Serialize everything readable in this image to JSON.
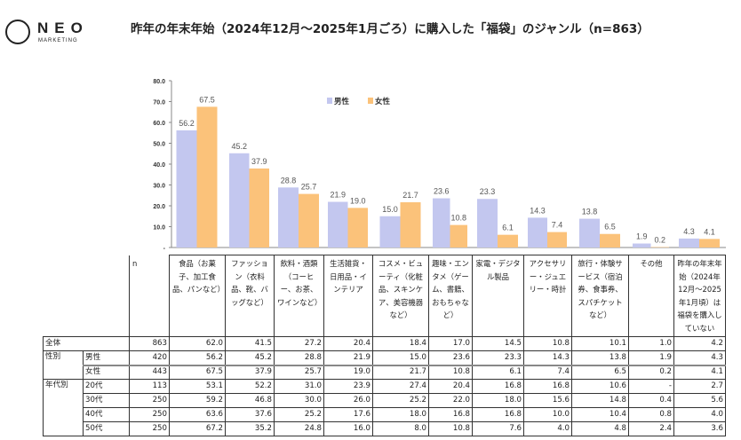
{
  "header": {
    "logo_text": "NEO",
    "logo_sub": "MARKETING",
    "title": "昨年の年末年始（2024年12月～2025年1月ごろ）に購入した「福袋」のジャンル（n=863）"
  },
  "colors": {
    "male": "#c3c7ef",
    "female": "#fbc27a"
  },
  "chart_data": {
    "type": "bar",
    "ylim": [
      0,
      80
    ],
    "yticks": [
      "-",
      "10.0",
      "20.0",
      "30.0",
      "40.0",
      "50.0",
      "60.0",
      "70.0",
      "80.0"
    ],
    "legend_position": "top-right",
    "categories": [
      "食品（お菓子、加工食品、パンなど）",
      "ファッション（衣料品、靴、バッグなど）",
      "飲料・酒類（コーヒー、お茶、ワインなど）",
      "生活雑貨・日用品・インテリア",
      "コスメ・ビューティ（化粧品、スキンケア、美容機器など）",
      "趣味・エンタメ（ゲーム、書籍、おもちゃなど）",
      "家電・デジタル製品",
      "アクセサリー・ジュエリー・時計",
      "旅行・体験サービス（宿泊券、食事券、スパチケットなど）",
      "その他",
      "昨年の年末年始（2024年12月～2025年1月頃）は福袋を購入していない"
    ],
    "series": [
      {
        "name": "男性",
        "values": [
          56.2,
          45.2,
          28.8,
          21.9,
          15.0,
          23.6,
          23.3,
          14.3,
          13.8,
          1.9,
          4.3
        ]
      },
      {
        "name": "女性",
        "values": [
          67.5,
          37.9,
          25.7,
          19.0,
          21.7,
          10.8,
          6.1,
          7.4,
          6.5,
          0.2,
          4.1
        ]
      }
    ]
  },
  "table": {
    "n_header": "n",
    "rows": [
      {
        "group": "全体",
        "sub": "",
        "n": "863",
        "values": [
          "62.0",
          "41.5",
          "27.2",
          "20.4",
          "18.4",
          "17.0",
          "14.5",
          "10.8",
          "10.1",
          "1.0",
          "4.2"
        ]
      },
      {
        "group": "性別",
        "sub": "男性",
        "n": "420",
        "values": [
          "56.2",
          "45.2",
          "28.8",
          "21.9",
          "15.0",
          "23.6",
          "23.3",
          "14.3",
          "13.8",
          "1.9",
          "4.3"
        ]
      },
      {
        "group": "",
        "sub": "女性",
        "n": "443",
        "values": [
          "67.5",
          "37.9",
          "25.7",
          "19.0",
          "21.7",
          "10.8",
          "6.1",
          "7.4",
          "6.5",
          "0.2",
          "4.1"
        ]
      },
      {
        "group": "年代別",
        "sub": "20代",
        "n": "113",
        "values": [
          "53.1",
          "52.2",
          "31.0",
          "23.9",
          "27.4",
          "20.4",
          "16.8",
          "16.8",
          "10.6",
          "-",
          "2.7"
        ]
      },
      {
        "group": "",
        "sub": "30代",
        "n": "250",
        "values": [
          "59.2",
          "46.8",
          "30.0",
          "26.0",
          "25.2",
          "22.0",
          "18.0",
          "15.6",
          "14.8",
          "0.4",
          "5.6"
        ]
      },
      {
        "group": "",
        "sub": "40代",
        "n": "250",
        "values": [
          "63.6",
          "37.6",
          "25.2",
          "17.6",
          "18.0",
          "16.8",
          "16.8",
          "10.0",
          "10.4",
          "0.8",
          "4.0"
        ]
      },
      {
        "group": "",
        "sub": "50代",
        "n": "250",
        "values": [
          "67.2",
          "35.2",
          "24.8",
          "16.0",
          "8.0",
          "10.8",
          "7.6",
          "4.0",
          "4.8",
          "2.4",
          "3.6"
        ]
      }
    ]
  }
}
